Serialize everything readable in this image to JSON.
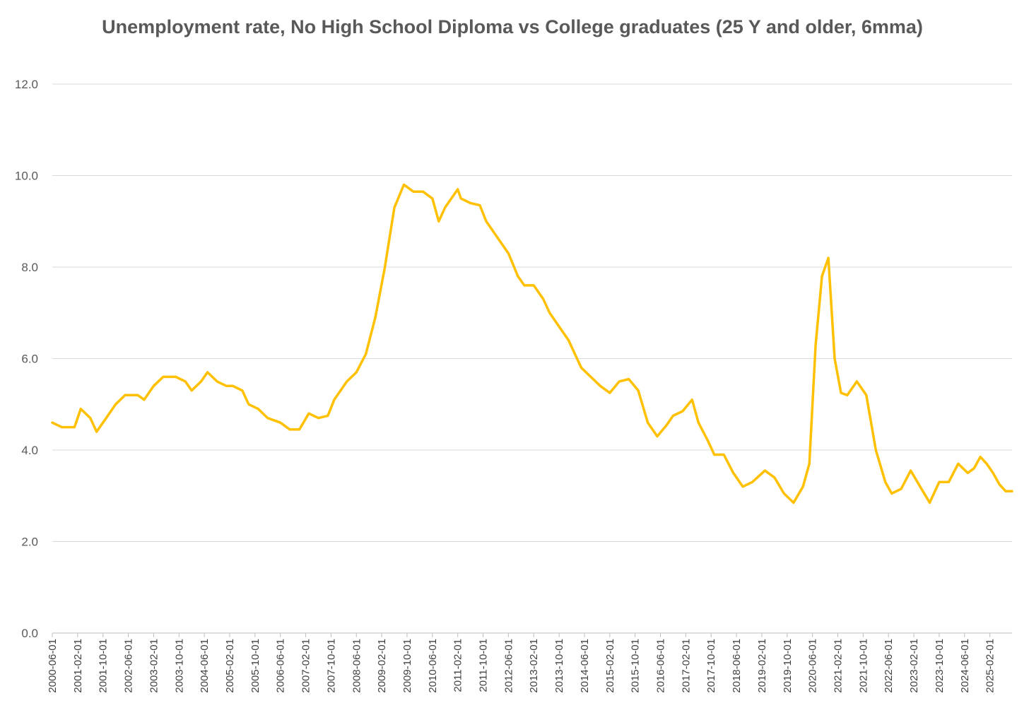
{
  "chart_data": {
    "type": "line",
    "title": "Unemployment rate, No High School Diploma vs College graduates (25 Y and older, 6mma)",
    "xlabel": "",
    "ylabel": "",
    "ylim": [
      0,
      12
    ],
    "yticks": [
      "0.0",
      "2.0",
      "4.0",
      "6.0",
      "8.0",
      "10.0",
      "12.0"
    ],
    "xtick_labels": [
      "2000-06-01",
      "2001-02-01",
      "2001-10-01",
      "2002-06-01",
      "2003-02-01",
      "2003-10-01",
      "2004-06-01",
      "2005-02-01",
      "2005-10-01",
      "2006-06-01",
      "2007-02-01",
      "2007-10-01",
      "2008-06-01",
      "2009-02-01",
      "2009-10-01",
      "2010-06-01",
      "2011-02-01",
      "2011-10-01",
      "2012-06-01",
      "2013-02-01",
      "2013-10-01",
      "2014-06-01",
      "2015-02-01",
      "2015-10-01",
      "2016-06-01",
      "2017-02-01",
      "2017-10-01",
      "2018-06-01",
      "2019-02-01",
      "2019-10-01",
      "2020-06-01",
      "2021-02-01",
      "2021-10-01",
      "2022-06-01",
      "2023-02-01",
      "2023-10-01",
      "2024-06-01",
      "2025-02-01"
    ],
    "grid": true,
    "legend": "none",
    "line_color": "#FFC000",
    "x_start": "2000-06",
    "x_end": "2025-09",
    "series": [
      {
        "points": [
          [
            "2000-06",
            4.6
          ],
          [
            "2000-09",
            4.5
          ],
          [
            "2001-01",
            4.5
          ],
          [
            "2001-03",
            4.9
          ],
          [
            "2001-06",
            4.7
          ],
          [
            "2001-08",
            4.4
          ],
          [
            "2001-11",
            4.7
          ],
          [
            "2002-02",
            5.0
          ],
          [
            "2002-05",
            5.2
          ],
          [
            "2002-09",
            5.2
          ],
          [
            "2002-11",
            5.1
          ],
          [
            "2003-02",
            5.4
          ],
          [
            "2003-05",
            5.6
          ],
          [
            "2003-09",
            5.6
          ],
          [
            "2003-12",
            5.5
          ],
          [
            "2004-02",
            5.3
          ],
          [
            "2004-05",
            5.5
          ],
          [
            "2004-07",
            5.7
          ],
          [
            "2004-10",
            5.5
          ],
          [
            "2005-01",
            5.4
          ],
          [
            "2005-03",
            5.4
          ],
          [
            "2005-06",
            5.3
          ],
          [
            "2005-08",
            5.0
          ],
          [
            "2005-11",
            4.9
          ],
          [
            "2006-02",
            4.7
          ],
          [
            "2006-06",
            4.6
          ],
          [
            "2006-09",
            4.45
          ],
          [
            "2006-12",
            4.45
          ],
          [
            "2007-03",
            4.8
          ],
          [
            "2007-06",
            4.7
          ],
          [
            "2007-09",
            4.75
          ],
          [
            "2007-11",
            5.1
          ],
          [
            "2008-03",
            5.5
          ],
          [
            "2008-06",
            5.7
          ],
          [
            "2008-09",
            6.1
          ],
          [
            "2008-12",
            6.9
          ],
          [
            "2009-03",
            8.0
          ],
          [
            "2009-06",
            9.3
          ],
          [
            "2009-09",
            9.8
          ],
          [
            "2009-12",
            9.65
          ],
          [
            "2010-03",
            9.65
          ],
          [
            "2010-06",
            9.5
          ],
          [
            "2010-08",
            9.0
          ],
          [
            "2010-10",
            9.3
          ],
          [
            "2011-01",
            9.6
          ],
          [
            "2011-02",
            9.7
          ],
          [
            "2011-03",
            9.5
          ],
          [
            "2011-06",
            9.4
          ],
          [
            "2011-09",
            9.35
          ],
          [
            "2011-11",
            9.0
          ],
          [
            "2012-02",
            8.7
          ],
          [
            "2012-04",
            8.5
          ],
          [
            "2012-06",
            8.3
          ],
          [
            "2012-09",
            7.8
          ],
          [
            "2012-11",
            7.6
          ],
          [
            "2013-02",
            7.6
          ],
          [
            "2013-05",
            7.3
          ],
          [
            "2013-07",
            7.0
          ],
          [
            "2013-10",
            6.7
          ],
          [
            "2014-01",
            6.4
          ],
          [
            "2014-05",
            5.8
          ],
          [
            "2014-08",
            5.6
          ],
          [
            "2014-11",
            5.4
          ],
          [
            "2015-02",
            5.25
          ],
          [
            "2015-05",
            5.5
          ],
          [
            "2015-08",
            5.55
          ],
          [
            "2015-11",
            5.3
          ],
          [
            "2016-02",
            4.6
          ],
          [
            "2016-05",
            4.3
          ],
          [
            "2016-08",
            4.55
          ],
          [
            "2016-10",
            4.75
          ],
          [
            "2017-01",
            4.85
          ],
          [
            "2017-04",
            5.1
          ],
          [
            "2017-06",
            4.6
          ],
          [
            "2017-09",
            4.2
          ],
          [
            "2017-11",
            3.9
          ],
          [
            "2018-02",
            3.9
          ],
          [
            "2018-05",
            3.5
          ],
          [
            "2018-08",
            3.2
          ],
          [
            "2018-11",
            3.3
          ],
          [
            "2019-03",
            3.55
          ],
          [
            "2019-06",
            3.4
          ],
          [
            "2019-09",
            3.05
          ],
          [
            "2019-12",
            2.85
          ],
          [
            "2020-03",
            3.2
          ],
          [
            "2020-05",
            3.7
          ],
          [
            "2020-07",
            6.3
          ],
          [
            "2020-09",
            7.8
          ],
          [
            "2020-11",
            8.2
          ],
          [
            "2021-01",
            6.0
          ],
          [
            "2021-03",
            5.25
          ],
          [
            "2021-05",
            5.2
          ],
          [
            "2021-08",
            5.5
          ],
          [
            "2021-11",
            5.2
          ],
          [
            "2022-02",
            4.0
          ],
          [
            "2022-05",
            3.3
          ],
          [
            "2022-07",
            3.05
          ],
          [
            "2022-10",
            3.15
          ],
          [
            "2023-01",
            3.55
          ],
          [
            "2023-04",
            3.2
          ],
          [
            "2023-07",
            2.85
          ],
          [
            "2023-10",
            3.3
          ],
          [
            "2024-01",
            3.3
          ],
          [
            "2024-04",
            3.7
          ],
          [
            "2024-07",
            3.5
          ],
          [
            "2024-09",
            3.6
          ],
          [
            "2024-11",
            3.85
          ],
          [
            "2025-01",
            3.7
          ],
          [
            "2025-03",
            3.5
          ],
          [
            "2025-05",
            3.25
          ],
          [
            "2025-07",
            3.1
          ],
          [
            "2025-09",
            3.1
          ]
        ]
      }
    ]
  }
}
